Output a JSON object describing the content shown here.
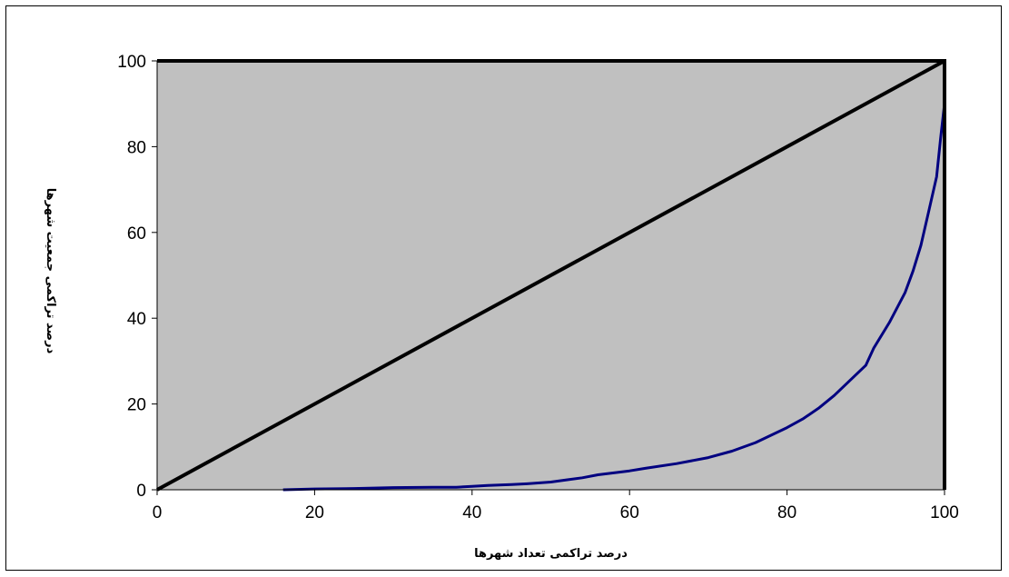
{
  "chart_data": {
    "type": "line",
    "title": "",
    "xlabel": "درصد تراکمی تعداد شهرها",
    "ylabel": "درصد تراکمی جمعیت شهرها",
    "xlim": [
      0,
      100
    ],
    "ylim": [
      0,
      100
    ],
    "x_ticks": [
      "0",
      "20",
      "40",
      "60",
      "80",
      "100"
    ],
    "y_ticks": [
      "0",
      "20",
      "40",
      "60",
      "80",
      "100"
    ],
    "grid": false,
    "legend": "none",
    "plot_background": "#c0c0c0",
    "series": [
      {
        "role": "equality-line",
        "color": "#000000",
        "x": [
          0,
          100
        ],
        "y": [
          0,
          100
        ]
      },
      {
        "role": "lorenz-curve",
        "color": "#000080",
        "x": [
          16,
          20,
          25,
          30,
          35,
          38,
          40,
          42,
          45,
          47,
          50,
          52,
          54,
          56,
          60,
          62,
          66,
          70,
          73,
          76,
          80,
          82,
          84,
          86,
          88,
          90,
          91,
          93,
          95,
          96,
          97,
          98,
          99,
          99.5,
          100,
          100
        ],
        "y": [
          0,
          0.2,
          0.3,
          0.5,
          0.6,
          0.6,
          0.8,
          1,
          1.2,
          1.4,
          1.8,
          2.3,
          2.8,
          3.5,
          4.4,
          5,
          6.1,
          7.5,
          9,
          11,
          14.5,
          16.5,
          19,
          22,
          25.5,
          29,
          33,
          39,
          46,
          51,
          57,
          65,
          73,
          82,
          90,
          100
        ]
      }
    ]
  }
}
